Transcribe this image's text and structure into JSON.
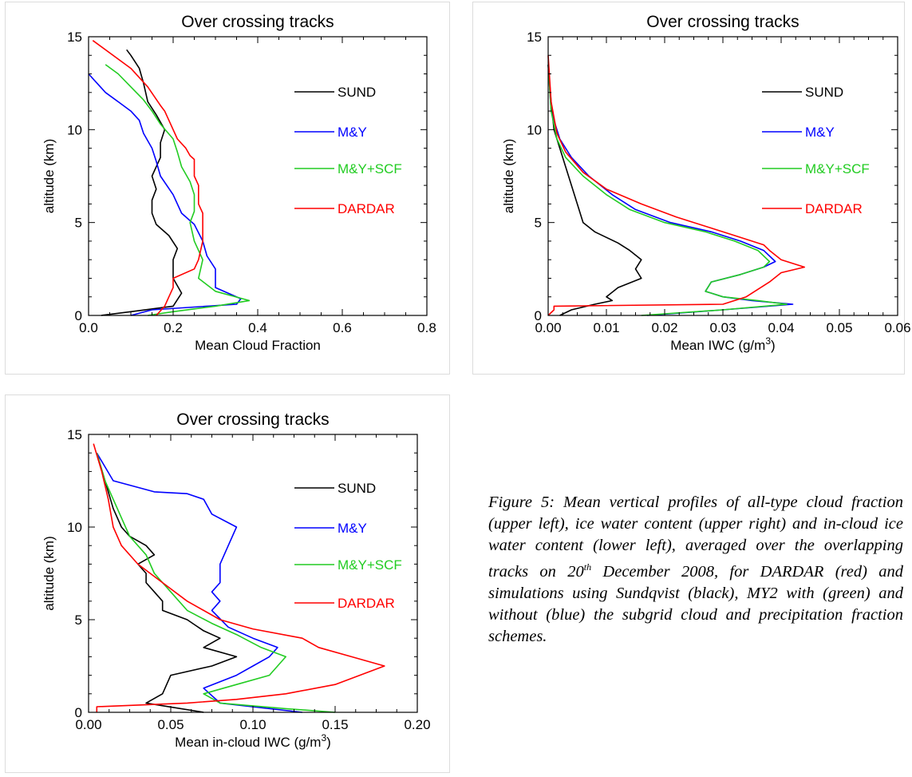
{
  "charts": [
    {
      "type": "line",
      "title": "Over crossing tracks",
      "xlabel": "Mean Cloud Fraction",
      "xlabel_sup": "",
      "xlabel_suffix": "",
      "ylabel": "altitude (km)",
      "xlim": [
        0,
        0.8
      ],
      "ylim": [
        0,
        15
      ],
      "xticks": [
        "0.0",
        "0.2",
        "0.4",
        "0.6",
        "0.8"
      ],
      "yticks": [
        "0",
        "5",
        "10",
        "15"
      ],
      "legend": "right",
      "series": [
        {
          "name": "SUND",
          "color": "#000000",
          "x": [
            0.03,
            0.1,
            0.2,
            0.22,
            0.2,
            0.2,
            0.21,
            0.19,
            0.16,
            0.15,
            0.15,
            0.16,
            0.15,
            0.17,
            0.17,
            0.18,
            0.16,
            0.14,
            0.13,
            0.12,
            0.1,
            0.09
          ],
          "y": [
            0.0,
            0.2,
            0.5,
            1.2,
            2.0,
            3.0,
            3.6,
            4.3,
            4.9,
            5.5,
            6.2,
            6.8,
            7.5,
            8.5,
            9.3,
            10.0,
            10.8,
            11.5,
            12.5,
            13.3,
            14.0,
            14.3
          ]
        },
        {
          "name": "M&Y",
          "color": "#0000ff",
          "x": [
            0.1,
            0.15,
            0.35,
            0.36,
            0.3,
            0.3,
            0.28,
            0.27,
            0.25,
            0.22,
            0.2,
            0.17,
            0.16,
            0.15,
            0.13,
            0.12,
            0.1,
            0.07,
            0.04,
            0.02,
            0.0
          ],
          "y": [
            0.0,
            0.3,
            0.6,
            0.9,
            1.5,
            2.5,
            3.2,
            4.0,
            4.9,
            5.5,
            6.5,
            7.5,
            8.3,
            9.0,
            9.8,
            10.5,
            11.0,
            11.5,
            12.0,
            12.5,
            13.0
          ]
        },
        {
          "name": "M&Y+SCF",
          "color": "#22cc22",
          "x": [
            0.14,
            0.2,
            0.3,
            0.38,
            0.3,
            0.26,
            0.27,
            0.25,
            0.24,
            0.25,
            0.25,
            0.24,
            0.22,
            0.21,
            0.2,
            0.17,
            0.15,
            0.13,
            0.1,
            0.07,
            0.04
          ],
          "y": [
            0.0,
            0.2,
            0.5,
            0.8,
            1.3,
            2.0,
            3.0,
            4.0,
            5.0,
            5.6,
            6.5,
            7.2,
            8.0,
            8.8,
            9.5,
            10.3,
            11.0,
            11.6,
            12.3,
            13.0,
            13.5
          ]
        },
        {
          "name": "DARDAR",
          "color": "#ff0000",
          "x": [
            0.16,
            0.18,
            0.19,
            0.2,
            0.2,
            0.25,
            0.26,
            0.27,
            0.27,
            0.27,
            0.26,
            0.26,
            0.25,
            0.25,
            0.24,
            0.23,
            0.21,
            0.19,
            0.18,
            0.17,
            0.14,
            0.1,
            0.01
          ],
          "y": [
            0.0,
            0.5,
            1.0,
            1.5,
            2.0,
            2.5,
            3.0,
            4.0,
            4.5,
            5.5,
            6.0,
            7.0,
            7.5,
            8.4,
            8.6,
            9.0,
            9.5,
            10.5,
            11.0,
            11.3,
            12.3,
            13.3,
            14.8
          ]
        }
      ]
    },
    {
      "type": "line",
      "title": "Over crossing tracks",
      "xlabel": "Mean IWC (g/m",
      "xlabel_sup": "3",
      "xlabel_suffix": ")",
      "ylabel": "altitude (km)",
      "xlim": [
        0,
        0.06
      ],
      "ylim": [
        0,
        15
      ],
      "xticks": [
        "0.00",
        "0.01",
        "0.02",
        "0.03",
        "0.04",
        "0.05",
        "0.06"
      ],
      "yticks": [
        "0",
        "5",
        "10",
        "15"
      ],
      "legend": "right",
      "series": [
        {
          "name": "SUND",
          "color": "#000000",
          "x": [
            0.002,
            0.004,
            0.008,
            0.011,
            0.01,
            0.012,
            0.016,
            0.015,
            0.016,
            0.014,
            0.012,
            0.01,
            0.008,
            0.006,
            0.005,
            0.004,
            0.003,
            0.002,
            0.001,
            0.0005,
            0.0
          ],
          "y": [
            0.0,
            0.3,
            0.6,
            0.8,
            1.0,
            1.5,
            2.0,
            2.5,
            3.0,
            3.5,
            3.9,
            4.2,
            4.5,
            5.0,
            6.0,
            7.0,
            8.0,
            9.0,
            10.0,
            11.5,
            13.5
          ]
        },
        {
          "name": "M&Y",
          "color": "#0000ff",
          "x": [
            0.017,
            0.03,
            0.042,
            0.035,
            0.03,
            0.027,
            0.028,
            0.033,
            0.037,
            0.039,
            0.037,
            0.033,
            0.028,
            0.021,
            0.015,
            0.011,
            0.007,
            0.004,
            0.002,
            0.0005,
            0.0
          ],
          "y": [
            0.0,
            0.3,
            0.6,
            0.8,
            1.0,
            1.3,
            1.8,
            2.2,
            2.6,
            2.9,
            3.5,
            4.0,
            4.5,
            5.0,
            5.7,
            6.5,
            7.5,
            8.5,
            9.5,
            11.0,
            13.5
          ]
        },
        {
          "name": "M&Y+SCF",
          "color": "#22cc22",
          "x": [
            0.016,
            0.03,
            0.041,
            0.036,
            0.03,
            0.027,
            0.028,
            0.033,
            0.037,
            0.038,
            0.036,
            0.032,
            0.027,
            0.02,
            0.014,
            0.01,
            0.006,
            0.003,
            0.0015,
            0.0005,
            0.0
          ],
          "y": [
            0.0,
            0.3,
            0.6,
            0.8,
            1.0,
            1.3,
            1.8,
            2.2,
            2.6,
            2.9,
            3.5,
            4.0,
            4.5,
            5.0,
            5.7,
            6.5,
            7.5,
            8.5,
            9.5,
            11.0,
            13.5
          ]
        },
        {
          "name": "DARDAR",
          "color": "#ff0000",
          "x": [
            0.0,
            0.001,
            0.001,
            0.03,
            0.034,
            0.038,
            0.04,
            0.044,
            0.04,
            0.038,
            0.037,
            0.033,
            0.028,
            0.022,
            0.016,
            0.01,
            0.006,
            0.003,
            0.0015,
            0.0005,
            0.0
          ],
          "y": [
            0.0,
            0.3,
            0.5,
            0.6,
            1.0,
            1.8,
            2.3,
            2.6,
            3.0,
            3.5,
            3.8,
            4.2,
            4.7,
            5.3,
            6.0,
            6.8,
            7.7,
            8.8,
            9.8,
            11.5,
            14.0
          ]
        }
      ]
    },
    {
      "type": "line",
      "title": "Over crossing tracks",
      "xlabel": "Mean in-cloud IWC (g/m",
      "xlabel_sup": "3",
      "xlabel_suffix": ")",
      "ylabel": "altitude (km)",
      "xlim": [
        0,
        0.2
      ],
      "ylim": [
        0,
        15
      ],
      "xticks": [
        "0.00",
        "0.05",
        "0.10",
        "0.15",
        "0.20"
      ],
      "yticks": [
        "0",
        "5",
        "10",
        "15"
      ],
      "legend": "right",
      "series": [
        {
          "name": "SUND",
          "color": "#000000",
          "x": [
            0.07,
            0.035,
            0.045,
            0.05,
            0.075,
            0.09,
            0.07,
            0.08,
            0.07,
            0.065,
            0.06,
            0.045,
            0.045,
            0.04,
            0.035,
            0.035,
            0.03,
            0.04,
            0.035,
            0.025,
            0.02,
            0.015,
            0.01,
            0.005
          ],
          "y": [
            0.0,
            0.5,
            1.0,
            2.0,
            2.5,
            3.0,
            3.5,
            4.0,
            4.4,
            4.7,
            5.0,
            5.5,
            6.0,
            6.5,
            7.0,
            7.5,
            8.0,
            8.5,
            9.0,
            9.5,
            10.0,
            11.0,
            12.5,
            14.0
          ]
        },
        {
          "name": "M&Y",
          "color": "#0000ff",
          "x": [
            0.13,
            0.08,
            0.07,
            0.09,
            0.1,
            0.11,
            0.115,
            0.1,
            0.085,
            0.075,
            0.08,
            0.075,
            0.08,
            0.08,
            0.085,
            0.09,
            0.075,
            0.07,
            0.06,
            0.04,
            0.015,
            0.005
          ],
          "y": [
            0.0,
            0.5,
            1.3,
            2.0,
            2.5,
            3.0,
            3.5,
            4.0,
            4.6,
            5.5,
            6.0,
            6.5,
            7.0,
            8.0,
            9.0,
            10.0,
            10.7,
            11.5,
            11.8,
            11.9,
            12.5,
            14.0
          ]
        },
        {
          "name": "M&Y+SCF",
          "color": "#22cc22",
          "x": [
            0.15,
            0.12,
            0.08,
            0.07,
            0.09,
            0.11,
            0.12,
            0.105,
            0.09,
            0.075,
            0.06,
            0.05,
            0.04,
            0.035,
            0.025,
            0.02,
            0.015,
            0.01,
            0.005
          ],
          "y": [
            0.0,
            0.2,
            0.5,
            1.0,
            1.5,
            2.0,
            3.0,
            3.5,
            4.2,
            4.8,
            5.5,
            6.5,
            7.5,
            8.5,
            9.5,
            10.5,
            11.5,
            12.5,
            14.0
          ]
        },
        {
          "name": "DARDAR",
          "color": "#ff0000",
          "x": [
            0.005,
            0.005,
            0.06,
            0.09,
            0.12,
            0.15,
            0.18,
            0.16,
            0.14,
            0.13,
            0.1,
            0.08,
            0.06,
            0.045,
            0.03,
            0.02,
            0.015,
            0.012,
            0.008,
            0.003
          ],
          "y": [
            0.0,
            0.3,
            0.5,
            0.7,
            1.0,
            1.5,
            2.5,
            3.0,
            3.5,
            4.0,
            4.5,
            5.0,
            6.0,
            7.0,
            8.0,
            9.0,
            10.0,
            11.5,
            13.0,
            14.5
          ]
        }
      ]
    }
  ],
  "caption": {
    "before_sup": "Figure 5: Mean vertical profiles of all-type cloud fraction (upper left), ice water content (upper right) and in-cloud ice water content (lower left), averaged over the overlapping tracks on 20",
    "sup": "th",
    "after_sup": " December 2008, for DARDAR (red) and simulations using Sundqvist (black), MY2 with (green) and without (blue) the subgrid cloud and precipitation fraction schemes."
  }
}
